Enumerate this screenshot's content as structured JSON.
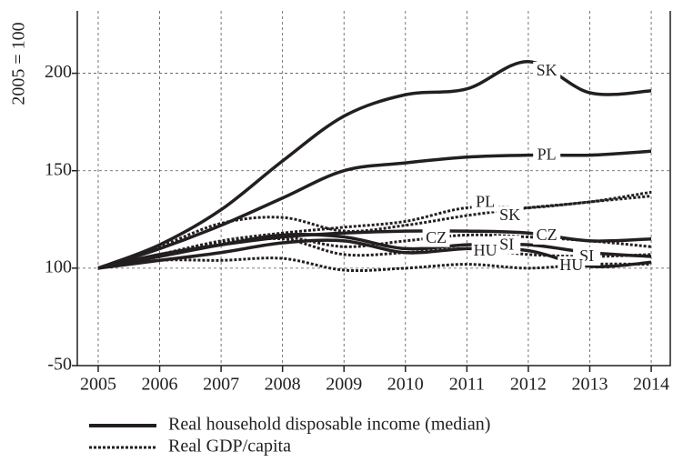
{
  "chart_data": {
    "type": "line",
    "y_label": "2005 = 100",
    "x": [
      2005,
      2006,
      2007,
      2008,
      2009,
      2010,
      2011,
      2012,
      2013,
      2014
    ],
    "xlim": [
      2004.66,
      2014.31
    ],
    "xticks": [
      2005,
      2006,
      2007,
      2008,
      2009,
      2010,
      2011,
      2012,
      2013,
      2014
    ],
    "ylim": [
      50,
      232
    ],
    "yticks": [
      {
        "value": 50,
        "label": "-50"
      },
      100,
      150,
      200
    ],
    "grid": true,
    "legend": [
      {
        "name": "Real household disposable income (median)",
        "style": "solid"
      },
      {
        "name": "Real GDP/capita",
        "style": "dotted"
      }
    ],
    "series": [
      {
        "name": "SK",
        "style": "solid",
        "color": "#231f20",
        "values": [
          100,
          112,
          130,
          155,
          178,
          189,
          192,
          206,
          190,
          191
        ]
      },
      {
        "name": "PL",
        "style": "solid",
        "color": "#231f20",
        "values": [
          100,
          110,
          122,
          136,
          150,
          154,
          157,
          158,
          158,
          160
        ]
      },
      {
        "name": "CZ",
        "style": "solid",
        "color": "#231f20",
        "values": [
          100,
          107,
          112,
          116,
          118,
          119,
          119,
          118,
          114,
          115
        ]
      },
      {
        "name": "SI",
        "style": "solid",
        "color": "#231f20",
        "values": [
          100,
          106,
          112,
          117,
          116,
          110,
          112,
          112,
          108,
          106
        ]
      },
      {
        "name": "HU",
        "style": "solid",
        "color": "#231f20",
        "values": [
          100,
          104,
          108,
          113,
          114,
          108,
          110,
          109,
          101,
          103
        ]
      },
      {
        "name": "SK",
        "style": "dotted",
        "color": "#231f20",
        "values": [
          100,
          111,
          123,
          126,
          119,
          122,
          127,
          131,
          134,
          139
        ]
      },
      {
        "name": "PL",
        "style": "dotted",
        "color": "#231f20",
        "values": [
          100,
          107,
          114,
          118,
          121,
          124,
          131,
          131,
          134,
          137
        ]
      },
      {
        "name": "CZ",
        "style": "dotted",
        "color": "#231f20",
        "values": [
          100,
          107,
          113,
          116,
          111,
          114,
          117,
          116,
          114,
          111
        ]
      },
      {
        "name": "SI",
        "style": "dotted",
        "color": "#231f20",
        "values": [
          100,
          106,
          112,
          115,
          107,
          108,
          110,
          107,
          106,
          107
        ]
      },
      {
        "name": "HU",
        "style": "dotted",
        "color": "#231f20",
        "values": [
          100,
          104,
          104,
          105,
          99,
          100,
          102,
          100,
          102,
          102
        ]
      }
    ]
  }
}
